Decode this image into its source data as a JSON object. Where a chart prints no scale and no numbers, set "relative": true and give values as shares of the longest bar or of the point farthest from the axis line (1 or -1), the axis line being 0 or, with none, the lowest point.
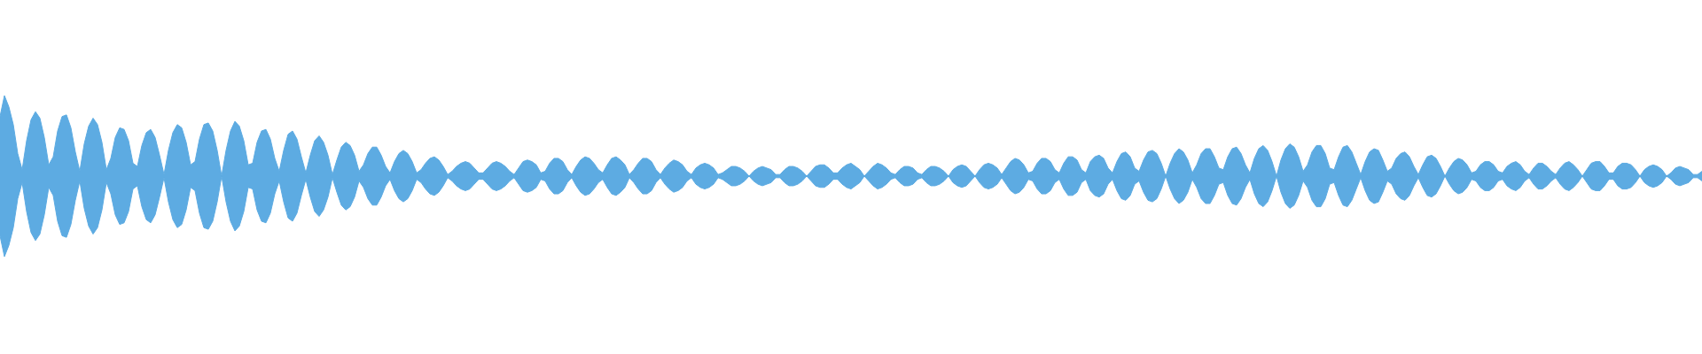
{
  "chart_data": {
    "type": "area",
    "relative": true,
    "ref_lines": [
      {
        "axis": "y",
        "value": 0
      }
    ],
    "categories": [
      null,
      null,
      null,
      null,
      null,
      null,
      null,
      null,
      null,
      null,
      null,
      null,
      null,
      null,
      null,
      null,
      null,
      null,
      null,
      null,
      null,
      null,
      null,
      null,
      null,
      null,
      null,
      null,
      null,
      null,
      null,
      null,
      null,
      null,
      null,
      null,
      null,
      null,
      null,
      null,
      null,
      null,
      null,
      null,
      null,
      null,
      null,
      null,
      null,
      null,
      null,
      null,
      null,
      null,
      null,
      null,
      null,
      null,
      null,
      null,
      null,
      null,
      null,
      null,
      null,
      null,
      null,
      null,
      null,
      null,
      null,
      null,
      null,
      null,
      null,
      null,
      null,
      null,
      null,
      null,
      null,
      null,
      null,
      null,
      null,
      null,
      null,
      null,
      null,
      null,
      null,
      null,
      null,
      null,
      null,
      null,
      null,
      null,
      null,
      null,
      null,
      null,
      null,
      null,
      null,
      null,
      null,
      null,
      null,
      null,
      null,
      null,
      null,
      null,
      null,
      null,
      null,
      null,
      null,
      null,
      null,
      null,
      null,
      null,
      null,
      null,
      null,
      null,
      null,
      null,
      null,
      null,
      null,
      null,
      null,
      null,
      null,
      null,
      null,
      null,
      null,
      null,
      null,
      null,
      null,
      null,
      null,
      null,
      null,
      null,
      null,
      null,
      null,
      null,
      null,
      null,
      null,
      null,
      null,
      null,
      null,
      null,
      null,
      null,
      null,
      null,
      null,
      null,
      null,
      null,
      null,
      null,
      null,
      null,
      null,
      null,
      null,
      null,
      null,
      null,
      null,
      null,
      null,
      null,
      null,
      null,
      null,
      null,
      null,
      null,
      null,
      null,
      null,
      null,
      null,
      null,
      null,
      null,
      null,
      null,
      null,
      null,
      null,
      null,
      null,
      null,
      null,
      null,
      null,
      null,
      null,
      null,
      null,
      null,
      null,
      null,
      null,
      null,
      null,
      null,
      null,
      null,
      null,
      null,
      null,
      null,
      null,
      null,
      null,
      null,
      null,
      null,
      null,
      null,
      null,
      null,
      null,
      null,
      null,
      null,
      null,
      null,
      null,
      null,
      null,
      null,
      null,
      null,
      null,
      null,
      null,
      null,
      null,
      null,
      null,
      null,
      null,
      null,
      null,
      null,
      null,
      null,
      null,
      null,
      null,
      null,
      null,
      null,
      null,
      null,
      null,
      null,
      null,
      null,
      null,
      null,
      null,
      null,
      null,
      null,
      null,
      null,
      null,
      null,
      null,
      null,
      null,
      null,
      null,
      null,
      null,
      null,
      null,
      null,
      null,
      null,
      null,
      null,
      null,
      null,
      null,
      null,
      null,
      null,
      null,
      null,
      null,
      null,
      null,
      null,
      null,
      null,
      null,
      null,
      null,
      null,
      null,
      null,
      null,
      null,
      null,
      null,
      null,
      null,
      null,
      null,
      null,
      null,
      null,
      null,
      null,
      null,
      null,
      null,
      null,
      null,
      null,
      null,
      null,
      null,
      null,
      null,
      null,
      null,
      null,
      null,
      null,
      null,
      null,
      null,
      null,
      null,
      null,
      null,
      null,
      null,
      null,
      null,
      null,
      null,
      null,
      null,
      null,
      null,
      null,
      null,
      null,
      null,
      null,
      null,
      null,
      null,
      null,
      null,
      null,
      null,
      null,
      null,
      null,
      null,
      null,
      null,
      null,
      null,
      null
    ],
    "series": [
      {
        "color": "#5dabe2",
        "values": [
          0.74,
          1,
          0.86,
          0.64,
          0.28,
          0.08,
          0.44,
          0.7,
          0.8,
          0.72,
          0.48,
          0.14,
          0.24,
          0.56,
          0.74,
          0.76,
          0.6,
          0.3,
          0.06,
          0.4,
          0.62,
          0.72,
          0.64,
          0.42,
          0.08,
          0.22,
          0.48,
          0.6,
          0.58,
          0.44,
          0.16,
          0.12,
          0.38,
          0.54,
          0.58,
          0.48,
          0.26,
          0.02,
          0.32,
          0.54,
          0.64,
          0.6,
          0.42,
          0.14,
          0.18,
          0.46,
          0.64,
          0.66,
          0.56,
          0.32,
          0,
          0.32,
          0.56,
          0.68,
          0.62,
          0.44,
          0.14,
          0.16,
          0.42,
          0.56,
          0.58,
          0.46,
          0.22,
          0.06,
          0.32,
          0.52,
          0.56,
          0.46,
          0.24,
          0.04,
          0.26,
          0.44,
          0.5,
          0.42,
          0.26,
          0.02,
          0.2,
          0.36,
          0.42,
          0.38,
          0.26,
          0.06,
          0.14,
          0.28,
          0.36,
          0.36,
          0.26,
          0.12,
          0.04,
          0.18,
          0.28,
          0.32,
          0.28,
          0.18,
          0.04,
          0.08,
          0.16,
          0.22,
          0.24,
          0.2,
          0.12,
          0.02,
          0.06,
          0.12,
          0.16,
          0.18,
          0.16,
          0.1,
          0.04,
          0.04,
          0.1,
          0.16,
          0.18,
          0.16,
          0.12,
          0.06,
          0.02,
          0.1,
          0.18,
          0.2,
          0.18,
          0.14,
          0.04,
          0.06,
          0.16,
          0.22,
          0.22,
          0.18,
          0.08,
          0.02,
          0.12,
          0.2,
          0.24,
          0.22,
          0.16,
          0.08,
          0.04,
          0.14,
          0.22,
          0.24,
          0.2,
          0.14,
          0.02,
          0.08,
          0.16,
          0.22,
          0.22,
          0.18,
          0.08,
          0.02,
          0.1,
          0.16,
          0.2,
          0.18,
          0.14,
          0.06,
          0.02,
          0.1,
          0.14,
          0.16,
          0.14,
          0.1,
          0.02,
          0.04,
          0.08,
          0.12,
          0.12,
          0.1,
          0.06,
          0,
          0.06,
          0.1,
          0.12,
          0.1,
          0.08,
          0.02,
          0.02,
          0.08,
          0.12,
          0.12,
          0.1,
          0.06,
          0,
          0.06,
          0.12,
          0.14,
          0.14,
          0.1,
          0.04,
          0.04,
          0.1,
          0.14,
          0.16,
          0.12,
          0.08,
          0,
          0.06,
          0.12,
          0.16,
          0.14,
          0.1,
          0.04,
          0.02,
          0.08,
          0.12,
          0.12,
          0.1,
          0.04,
          0.02,
          0.08,
          0.12,
          0.12,
          0.1,
          0.06,
          0,
          0.08,
          0.12,
          0.14,
          0.12,
          0.06,
          0,
          0.08,
          0.14,
          0.16,
          0.14,
          0.1,
          0.02,
          0.1,
          0.18,
          0.22,
          0.2,
          0.14,
          0.04,
          0.06,
          0.16,
          0.22,
          0.22,
          0.18,
          0.08,
          0.04,
          0.16,
          0.24,
          0.24,
          0.2,
          0.08,
          0.04,
          0.18,
          0.24,
          0.26,
          0.22,
          0.1,
          0.04,
          0.18,
          0.28,
          0.3,
          0.24,
          0.1,
          0.06,
          0.2,
          0.3,
          0.32,
          0.28,
          0.16,
          0,
          0.16,
          0.28,
          0.34,
          0.3,
          0.2,
          0.04,
          0.14,
          0.28,
          0.34,
          0.34,
          0.24,
          0.1,
          0.08,
          0.24,
          0.34,
          0.36,
          0.28,
          0.14,
          0.04,
          0.22,
          0.34,
          0.38,
          0.32,
          0.18,
          0,
          0.2,
          0.34,
          0.4,
          0.36,
          0.24,
          0.06,
          0.14,
          0.3,
          0.38,
          0.38,
          0.28,
          0.1,
          0.08,
          0.24,
          0.36,
          0.38,
          0.3,
          0.16,
          0.02,
          0.18,
          0.3,
          0.34,
          0.32,
          0.2,
          0.06,
          0.1,
          0.22,
          0.28,
          0.3,
          0.24,
          0.12,
          0.02,
          0.14,
          0.24,
          0.26,
          0.22,
          0.12,
          0,
          0.1,
          0.18,
          0.22,
          0.2,
          0.14,
          0.04,
          0.06,
          0.14,
          0.18,
          0.18,
          0.14,
          0.06,
          0.04,
          0.12,
          0.16,
          0.18,
          0.14,
          0.06,
          0.02,
          0.1,
          0.16,
          0.16,
          0.12,
          0.06,
          0.02,
          0.1,
          0.16,
          0.18,
          0.14,
          0.08,
          0,
          0.08,
          0.16,
          0.18,
          0.18,
          0.12,
          0.04,
          0.04,
          0.12,
          0.16,
          0.16,
          0.14,
          0.08,
          0,
          0.08,
          0.12,
          0.14,
          0.12,
          0.08,
          0,
          0.04,
          0.1,
          0.12,
          0.1,
          0.08,
          0.02,
          0.02,
          0.06
        ]
      },
      {
        "color": "#5dabe2",
        "values": [
          -0.74,
          -1,
          -0.86,
          -0.64,
          -0.28,
          -0.08,
          -0.44,
          -0.7,
          -0.8,
          -0.72,
          -0.48,
          -0.14,
          -0.24,
          -0.56,
          -0.74,
          -0.76,
          -0.6,
          -0.3,
          -0.06,
          -0.4,
          -0.62,
          -0.72,
          -0.64,
          -0.42,
          -0.08,
          -0.22,
          -0.48,
          -0.6,
          -0.58,
          -0.44,
          -0.16,
          -0.12,
          -0.38,
          -0.54,
          -0.58,
          -0.48,
          -0.26,
          -0.02,
          -0.32,
          -0.54,
          -0.64,
          -0.6,
          -0.42,
          -0.14,
          -0.18,
          -0.46,
          -0.64,
          -0.66,
          -0.56,
          -0.32,
          0,
          -0.32,
          -0.56,
          -0.68,
          -0.62,
          -0.44,
          -0.14,
          -0.16,
          -0.42,
          -0.56,
          -0.58,
          -0.46,
          -0.22,
          -0.06,
          -0.32,
          -0.52,
          -0.56,
          -0.46,
          -0.24,
          -0.04,
          -0.26,
          -0.44,
          -0.5,
          -0.42,
          -0.26,
          -0.02,
          -0.2,
          -0.36,
          -0.42,
          -0.38,
          -0.26,
          -0.06,
          -0.14,
          -0.28,
          -0.36,
          -0.36,
          -0.26,
          -0.12,
          -0.04,
          -0.18,
          -0.28,
          -0.32,
          -0.28,
          -0.18,
          -0.04,
          -0.08,
          -0.16,
          -0.22,
          -0.24,
          -0.2,
          -0.12,
          -0.02,
          -0.06,
          -0.12,
          -0.16,
          -0.18,
          -0.16,
          -0.1,
          -0.04,
          -0.04,
          -0.1,
          -0.16,
          -0.18,
          -0.16,
          -0.12,
          -0.06,
          -0.02,
          -0.1,
          -0.18,
          -0.2,
          -0.18,
          -0.14,
          -0.04,
          -0.06,
          -0.16,
          -0.22,
          -0.22,
          -0.18,
          -0.08,
          -0.02,
          -0.12,
          -0.2,
          -0.24,
          -0.22,
          -0.16,
          -0.08,
          -0.04,
          -0.14,
          -0.22,
          -0.24,
          -0.2,
          -0.14,
          -0.02,
          -0.08,
          -0.16,
          -0.22,
          -0.22,
          -0.18,
          -0.08,
          -0.02,
          -0.1,
          -0.16,
          -0.2,
          -0.18,
          -0.14,
          -0.06,
          -0.02,
          -0.1,
          -0.14,
          -0.16,
          -0.14,
          -0.1,
          -0.02,
          -0.04,
          -0.08,
          -0.12,
          -0.12,
          -0.1,
          -0.06,
          0,
          -0.06,
          -0.1,
          -0.12,
          -0.1,
          -0.08,
          -0.02,
          -0.02,
          -0.08,
          -0.12,
          -0.12,
          -0.1,
          -0.06,
          0,
          -0.06,
          -0.12,
          -0.14,
          -0.14,
          -0.1,
          -0.04,
          -0.04,
          -0.1,
          -0.14,
          -0.16,
          -0.12,
          -0.08,
          0,
          -0.06,
          -0.12,
          -0.16,
          -0.14,
          -0.1,
          -0.04,
          -0.02,
          -0.08,
          -0.12,
          -0.12,
          -0.1,
          -0.04,
          -0.02,
          -0.08,
          -0.12,
          -0.12,
          -0.1,
          -0.06,
          0,
          -0.08,
          -0.12,
          -0.14,
          -0.12,
          -0.06,
          0,
          -0.08,
          -0.14,
          -0.16,
          -0.14,
          -0.1,
          -0.02,
          -0.1,
          -0.18,
          -0.22,
          -0.2,
          -0.14,
          -0.04,
          -0.06,
          -0.16,
          -0.22,
          -0.22,
          -0.18,
          -0.08,
          -0.04,
          -0.16,
          -0.24,
          -0.24,
          -0.2,
          -0.08,
          -0.04,
          -0.18,
          -0.24,
          -0.26,
          -0.22,
          -0.1,
          -0.04,
          -0.18,
          -0.28,
          -0.3,
          -0.24,
          -0.1,
          -0.06,
          -0.2,
          -0.3,
          -0.32,
          -0.28,
          -0.16,
          0,
          -0.16,
          -0.28,
          -0.34,
          -0.3,
          -0.2,
          -0.04,
          -0.14,
          -0.28,
          -0.34,
          -0.34,
          -0.24,
          -0.1,
          -0.08,
          -0.24,
          -0.34,
          -0.36,
          -0.28,
          -0.14,
          -0.04,
          -0.22,
          -0.34,
          -0.38,
          -0.32,
          -0.18,
          0,
          -0.2,
          -0.34,
          -0.4,
          -0.36,
          -0.24,
          -0.06,
          -0.14,
          -0.3,
          -0.38,
          -0.38,
          -0.28,
          -0.1,
          -0.08,
          -0.24,
          -0.36,
          -0.38,
          -0.3,
          -0.16,
          -0.02,
          -0.18,
          -0.3,
          -0.34,
          -0.32,
          -0.2,
          -0.06,
          -0.1,
          -0.22,
          -0.28,
          -0.3,
          -0.24,
          -0.12,
          -0.02,
          -0.14,
          -0.24,
          -0.26,
          -0.22,
          -0.12,
          0,
          -0.1,
          -0.18,
          -0.22,
          -0.2,
          -0.14,
          -0.04,
          -0.06,
          -0.14,
          -0.18,
          -0.18,
          -0.14,
          -0.06,
          -0.04,
          -0.12,
          -0.16,
          -0.18,
          -0.14,
          -0.06,
          -0.02,
          -0.1,
          -0.16,
          -0.16,
          -0.12,
          -0.06,
          -0.02,
          -0.1,
          -0.16,
          -0.18,
          -0.14,
          -0.08,
          0,
          -0.08,
          -0.16,
          -0.18,
          -0.18,
          -0.12,
          -0.04,
          -0.04,
          -0.12,
          -0.16,
          -0.16,
          -0.14,
          -0.08,
          0,
          -0.08,
          -0.12,
          -0.14,
          -0.12,
          -0.08,
          0,
          -0.04,
          -0.1,
          -0.12,
          -0.1,
          -0.08,
          -0.02,
          -0.02,
          -0.06
        ]
      }
    ]
  }
}
